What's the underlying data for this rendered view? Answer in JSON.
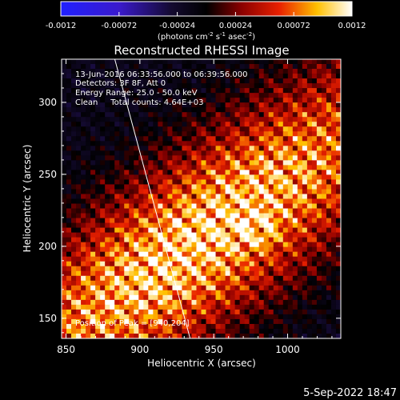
{
  "chart_data": {
    "type": "heatmap",
    "title": "Reconstructed RHESSI Image",
    "xlabel": "Heliocentric X (arcsec)",
    "ylabel": "Heliocentric Y (arcsec)",
    "xlim": [
      847,
      1036
    ],
    "ylim": [
      136,
      330
    ],
    "x_ticks": [
      850,
      900,
      950,
      1000
    ],
    "y_ticks": [
      150,
      200,
      250,
      300
    ],
    "colorbar": {
      "range": [
        -0.0012,
        0.0012
      ],
      "ticks": [
        "-0.0012",
        "-0.00072",
        "-0.00024",
        "0.00024",
        "0.00072",
        "0.0012"
      ],
      "unit_main": "(photons cm",
      "unit_exp1": "-2",
      "unit_mid1": " s",
      "unit_exp2": "-1",
      "unit_mid2": " asec",
      "unit_exp3": "-2",
      "unit_end": ")",
      "colormap": "rhessi-blue-black-red-yellow-white"
    },
    "annotations": [
      "13-Jun-2016 06:33:56.000 to 06:39:56.000",
      "Detectors: 3F 8F, Att 0",
      "Energy Range: 25.0 - 50.0 keV",
      "Clean     Total counts: 4.64E+03"
    ],
    "peak_label": "Position of Peak = [940,204]",
    "peak": [
      940,
      204
    ],
    "limb_line": [
      [
        883,
        330
      ],
      [
        934,
        136
      ]
    ],
    "timestamp": "5-Sep-2022 18:47"
  }
}
